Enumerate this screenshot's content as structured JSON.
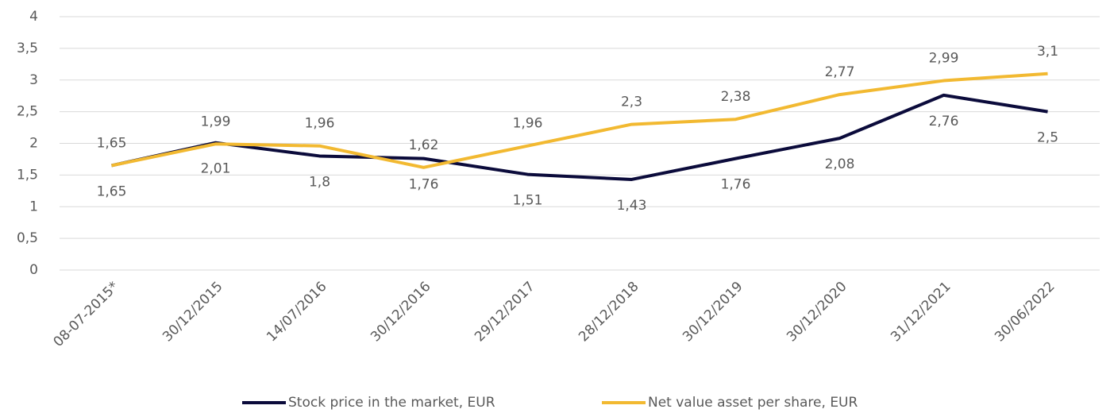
{
  "chart_data": {
    "type": "line",
    "categories": [
      "08-07-2015*",
      "30/12/2015",
      "14/07/2016",
      "30/12/2016",
      "29/12/2017",
      "28/12/2018",
      "30/12/2019",
      "30/12/2020",
      "31/12/2021",
      "30/06/2022"
    ],
    "series": [
      {
        "name": "Stock price in the market, EUR",
        "color": "#0b0b3b",
        "values": [
          1.65,
          2.01,
          1.8,
          1.76,
          1.51,
          1.43,
          1.76,
          2.08,
          2.76,
          2.5
        ],
        "value_labels": [
          "1,65",
          "2,01",
          "1,8",
          "1,76",
          "1,51",
          "1,43",
          "1,76",
          "2,08",
          "2,76",
          "2,5"
        ]
      },
      {
        "name": "Net value asset per share, EUR",
        "color": "#f2b931",
        "values": [
          1.65,
          1.99,
          1.96,
          1.62,
          1.96,
          2.3,
          2.38,
          2.77,
          2.99,
          3.1
        ],
        "value_labels": [
          "1,65",
          "1,99",
          "1,96",
          "1,62",
          "1,96",
          "2,3",
          "2,38",
          "2,77",
          "2,99",
          "3,1"
        ]
      }
    ],
    "ylim": [
      0,
      4
    ],
    "yticks": [
      0,
      {
        "value": 0.5,
        "label": "0,5"
      },
      1,
      {
        "value": 1.5,
        "label": "1,5"
      },
      2,
      {
        "value": 2.5,
        "label": "2,5"
      },
      3,
      {
        "value": 3.5,
        "label": "3,5"
      },
      4
    ],
    "grid": true,
    "legend": "bottom"
  }
}
